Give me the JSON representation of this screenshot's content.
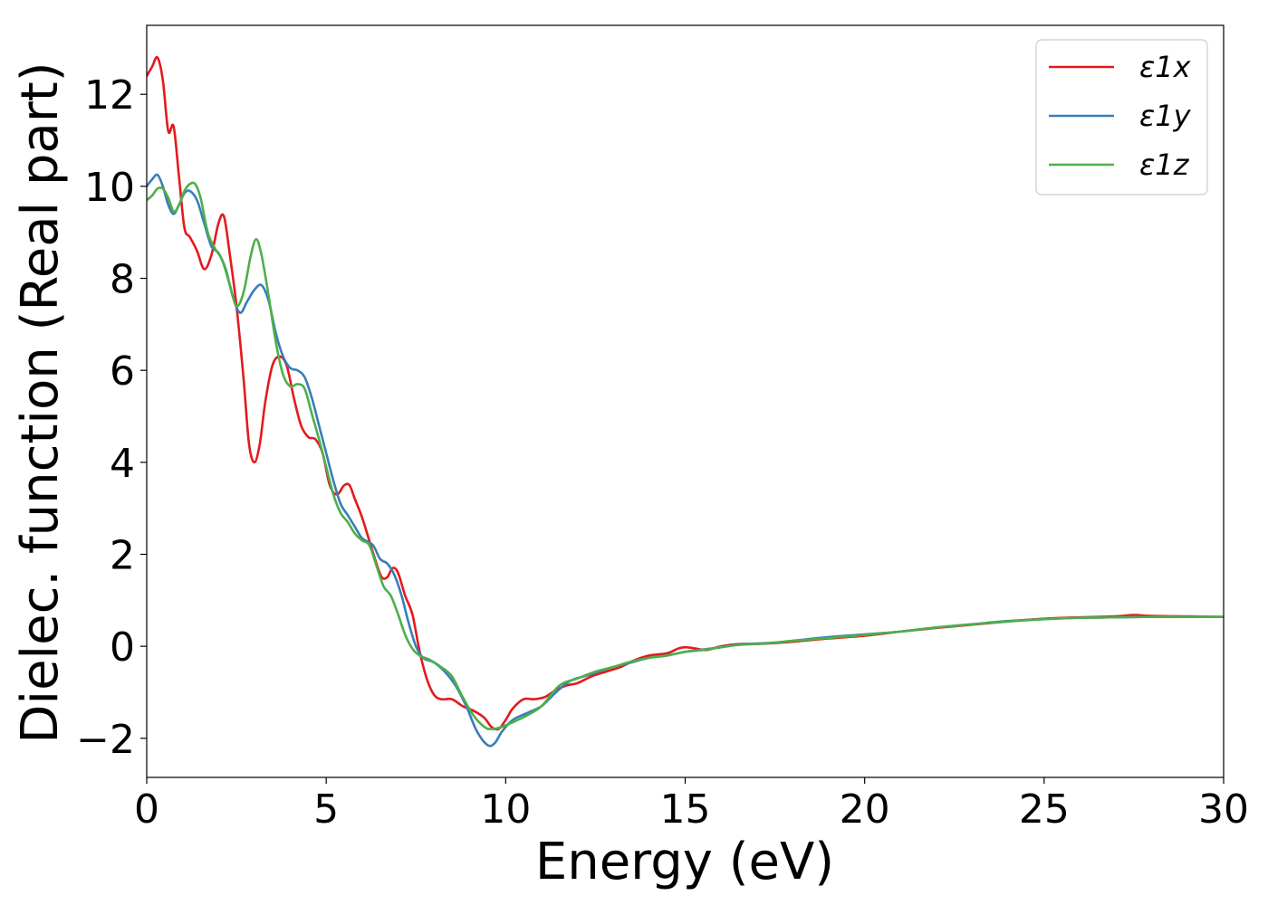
{
  "chart_data": {
    "type": "line",
    "xlabel": "Energy (eV)",
    "ylabel": "Dielec. function (Real part)",
    "xlim": [
      0,
      30
    ],
    "ylim": [
      -2.85,
      13.5
    ],
    "xticks": [
      0,
      5,
      10,
      15,
      20,
      25,
      30
    ],
    "yticks": [
      -2,
      0,
      2,
      4,
      6,
      8,
      10,
      12
    ],
    "xtick_labels": [
      "0",
      "5",
      "10",
      "15",
      "20",
      "25",
      "30"
    ],
    "ytick_labels": [
      "−2",
      "0",
      "2",
      "4",
      "6",
      "8",
      "10",
      "12"
    ],
    "grid": false,
    "legend_position": "top-right",
    "series": [
      {
        "name": "ε1x",
        "color": "#e41a1c",
        "points": [
          [
            0,
            12.4
          ],
          [
            0.15,
            12.6
          ],
          [
            0.3,
            12.8
          ],
          [
            0.45,
            12.3
          ],
          [
            0.6,
            11.2
          ],
          [
            0.75,
            11.3
          ],
          [
            0.9,
            10.2
          ],
          [
            1.05,
            9.1
          ],
          [
            1.2,
            8.9
          ],
          [
            1.4,
            8.6
          ],
          [
            1.6,
            8.2
          ],
          [
            1.8,
            8.5
          ],
          [
            2.0,
            9.2
          ],
          [
            2.15,
            9.35
          ],
          [
            2.3,
            8.6
          ],
          [
            2.5,
            7.4
          ],
          [
            2.7,
            5.8
          ],
          [
            2.85,
            4.4
          ],
          [
            3.0,
            4.0
          ],
          [
            3.15,
            4.4
          ],
          [
            3.3,
            5.3
          ],
          [
            3.5,
            6.1
          ],
          [
            3.7,
            6.3
          ],
          [
            3.9,
            6.1
          ],
          [
            4.1,
            5.4
          ],
          [
            4.3,
            4.8
          ],
          [
            4.5,
            4.55
          ],
          [
            4.7,
            4.5
          ],
          [
            4.9,
            4.2
          ],
          [
            5.1,
            3.5
          ],
          [
            5.3,
            3.3
          ],
          [
            5.5,
            3.5
          ],
          [
            5.65,
            3.5
          ],
          [
            5.8,
            3.2
          ],
          [
            6.0,
            2.8
          ],
          [
            6.2,
            2.3
          ],
          [
            6.4,
            1.8
          ],
          [
            6.55,
            1.5
          ],
          [
            6.7,
            1.5
          ],
          [
            6.85,
            1.7
          ],
          [
            7.0,
            1.6
          ],
          [
            7.2,
            1.1
          ],
          [
            7.4,
            0.7
          ],
          [
            7.6,
            -0.1
          ],
          [
            7.8,
            -0.7
          ],
          [
            8.0,
            -1.05
          ],
          [
            8.2,
            -1.15
          ],
          [
            8.5,
            -1.15
          ],
          [
            8.8,
            -1.3
          ],
          [
            9.1,
            -1.4
          ],
          [
            9.4,
            -1.55
          ],
          [
            9.6,
            -1.75
          ],
          [
            9.8,
            -1.8
          ],
          [
            10.0,
            -1.6
          ],
          [
            10.2,
            -1.35
          ],
          [
            10.5,
            -1.15
          ],
          [
            10.8,
            -1.15
          ],
          [
            11.1,
            -1.1
          ],
          [
            11.4,
            -0.95
          ],
          [
            11.7,
            -0.85
          ],
          [
            12.0,
            -0.8
          ],
          [
            12.4,
            -0.65
          ],
          [
            12.8,
            -0.55
          ],
          [
            13.2,
            -0.45
          ],
          [
            13.6,
            -0.3
          ],
          [
            14.0,
            -0.2
          ],
          [
            14.5,
            -0.15
          ],
          [
            14.8,
            -0.05
          ],
          [
            15.0,
            -0.02
          ],
          [
            15.3,
            -0.05
          ],
          [
            15.6,
            -0.08
          ],
          [
            16.0,
            0.0
          ],
          [
            16.5,
            0.05
          ],
          [
            17.0,
            0.05
          ],
          [
            17.5,
            0.07
          ],
          [
            18.0,
            0.1
          ],
          [
            19.0,
            0.17
          ],
          [
            20.0,
            0.23
          ],
          [
            21.0,
            0.32
          ],
          [
            22.0,
            0.4
          ],
          [
            23.0,
            0.47
          ],
          [
            24.0,
            0.54
          ],
          [
            25.0,
            0.6
          ],
          [
            26.0,
            0.63
          ],
          [
            27.0,
            0.65
          ],
          [
            27.5,
            0.68
          ],
          [
            28.0,
            0.66
          ],
          [
            29.0,
            0.65
          ],
          [
            30.0,
            0.64
          ]
        ]
      },
      {
        "name": "ε1y",
        "color": "#377eb8",
        "points": [
          [
            0,
            10.0
          ],
          [
            0.15,
            10.15
          ],
          [
            0.3,
            10.25
          ],
          [
            0.45,
            10.0
          ],
          [
            0.6,
            9.6
          ],
          [
            0.75,
            9.4
          ],
          [
            0.9,
            9.6
          ],
          [
            1.05,
            9.85
          ],
          [
            1.2,
            9.9
          ],
          [
            1.4,
            9.7
          ],
          [
            1.6,
            9.2
          ],
          [
            1.8,
            8.7
          ],
          [
            2.0,
            8.55
          ],
          [
            2.2,
            8.2
          ],
          [
            2.4,
            7.6
          ],
          [
            2.6,
            7.25
          ],
          [
            2.8,
            7.5
          ],
          [
            3.0,
            7.75
          ],
          [
            3.2,
            7.85
          ],
          [
            3.4,
            7.5
          ],
          [
            3.6,
            6.8
          ],
          [
            3.8,
            6.3
          ],
          [
            4.0,
            6.05
          ],
          [
            4.2,
            6.0
          ],
          [
            4.4,
            5.85
          ],
          [
            4.6,
            5.4
          ],
          [
            4.8,
            4.8
          ],
          [
            5.0,
            4.2
          ],
          [
            5.2,
            3.6
          ],
          [
            5.4,
            3.1
          ],
          [
            5.6,
            2.85
          ],
          [
            5.8,
            2.6
          ],
          [
            6.0,
            2.35
          ],
          [
            6.3,
            2.2
          ],
          [
            6.5,
            1.9
          ],
          [
            6.7,
            1.8
          ],
          [
            6.9,
            1.55
          ],
          [
            7.1,
            1.1
          ],
          [
            7.3,
            0.5
          ],
          [
            7.5,
            0.0
          ],
          [
            7.7,
            -0.25
          ],
          [
            8.0,
            -0.35
          ],
          [
            8.3,
            -0.55
          ],
          [
            8.6,
            -0.85
          ],
          [
            8.9,
            -1.3
          ],
          [
            9.2,
            -1.85
          ],
          [
            9.5,
            -2.15
          ],
          [
            9.7,
            -2.1
          ],
          [
            9.9,
            -1.85
          ],
          [
            10.2,
            -1.6
          ],
          [
            10.6,
            -1.45
          ],
          [
            11.0,
            -1.3
          ],
          [
            11.4,
            -1.0
          ],
          [
            11.8,
            -0.75
          ],
          [
            12.2,
            -0.65
          ],
          [
            12.6,
            -0.55
          ],
          [
            13.0,
            -0.45
          ],
          [
            13.5,
            -0.35
          ],
          [
            14.0,
            -0.25
          ],
          [
            14.5,
            -0.2
          ],
          [
            15.0,
            -0.12
          ],
          [
            15.5,
            -0.07
          ],
          [
            16.0,
            -0.02
          ],
          [
            16.5,
            0.04
          ],
          [
            17.0,
            0.06
          ],
          [
            17.5,
            0.08
          ],
          [
            18.0,
            0.12
          ],
          [
            19.0,
            0.2
          ],
          [
            20.0,
            0.26
          ],
          [
            21.0,
            0.32
          ],
          [
            22.0,
            0.41
          ],
          [
            23.0,
            0.48
          ],
          [
            24.0,
            0.55
          ],
          [
            25.0,
            0.59
          ],
          [
            26.0,
            0.62
          ],
          [
            27.0,
            0.63
          ],
          [
            28.0,
            0.64
          ],
          [
            29.0,
            0.64
          ],
          [
            30.0,
            0.64
          ]
        ]
      },
      {
        "name": "ε1z",
        "color": "#4daf4a",
        "points": [
          [
            0,
            9.7
          ],
          [
            0.15,
            9.8
          ],
          [
            0.3,
            9.95
          ],
          [
            0.45,
            9.95
          ],
          [
            0.6,
            9.75
          ],
          [
            0.75,
            9.45
          ],
          [
            0.9,
            9.6
          ],
          [
            1.05,
            9.9
          ],
          [
            1.2,
            10.05
          ],
          [
            1.35,
            10.05
          ],
          [
            1.5,
            9.75
          ],
          [
            1.7,
            9.0
          ],
          [
            1.9,
            8.65
          ],
          [
            2.1,
            8.4
          ],
          [
            2.3,
            7.9
          ],
          [
            2.5,
            7.4
          ],
          [
            2.7,
            7.7
          ],
          [
            2.9,
            8.5
          ],
          [
            3.05,
            8.85
          ],
          [
            3.2,
            8.5
          ],
          [
            3.4,
            7.6
          ],
          [
            3.6,
            6.6
          ],
          [
            3.8,
            5.9
          ],
          [
            4.0,
            5.65
          ],
          [
            4.2,
            5.7
          ],
          [
            4.4,
            5.6
          ],
          [
            4.6,
            5.05
          ],
          [
            4.8,
            4.5
          ],
          [
            5.0,
            3.9
          ],
          [
            5.2,
            3.3
          ],
          [
            5.4,
            2.9
          ],
          [
            5.6,
            2.7
          ],
          [
            5.8,
            2.45
          ],
          [
            6.0,
            2.3
          ],
          [
            6.2,
            2.2
          ],
          [
            6.4,
            1.75
          ],
          [
            6.6,
            1.3
          ],
          [
            6.8,
            1.1
          ],
          [
            7.0,
            0.7
          ],
          [
            7.2,
            0.25
          ],
          [
            7.4,
            -0.05
          ],
          [
            7.6,
            -0.2
          ],
          [
            7.9,
            -0.3
          ],
          [
            8.2,
            -0.45
          ],
          [
            8.5,
            -0.65
          ],
          [
            8.8,
            -1.1
          ],
          [
            9.1,
            -1.5
          ],
          [
            9.4,
            -1.75
          ],
          [
            9.6,
            -1.8
          ],
          [
            9.9,
            -1.75
          ],
          [
            10.2,
            -1.65
          ],
          [
            10.6,
            -1.5
          ],
          [
            11.0,
            -1.3
          ],
          [
            11.5,
            -0.85
          ],
          [
            12.0,
            -0.7
          ],
          [
            12.5,
            -0.55
          ],
          [
            13.0,
            -0.45
          ],
          [
            13.5,
            -0.33
          ],
          [
            14.0,
            -0.25
          ],
          [
            14.5,
            -0.2
          ],
          [
            15.0,
            -0.12
          ],
          [
            15.5,
            -0.08
          ],
          [
            16.0,
            -0.02
          ],
          [
            16.5,
            0.03
          ],
          [
            17.0,
            0.05
          ],
          [
            17.5,
            0.08
          ],
          [
            18.0,
            0.12
          ],
          [
            19.0,
            0.18
          ],
          [
            20.0,
            0.25
          ],
          [
            21.0,
            0.32
          ],
          [
            22.0,
            0.41
          ],
          [
            23.0,
            0.48
          ],
          [
            24.0,
            0.54
          ],
          [
            25.0,
            0.59
          ],
          [
            26.0,
            0.62
          ],
          [
            27.0,
            0.63
          ],
          [
            28.0,
            0.64
          ],
          [
            29.0,
            0.64
          ],
          [
            30.0,
            0.64
          ]
        ]
      }
    ]
  }
}
